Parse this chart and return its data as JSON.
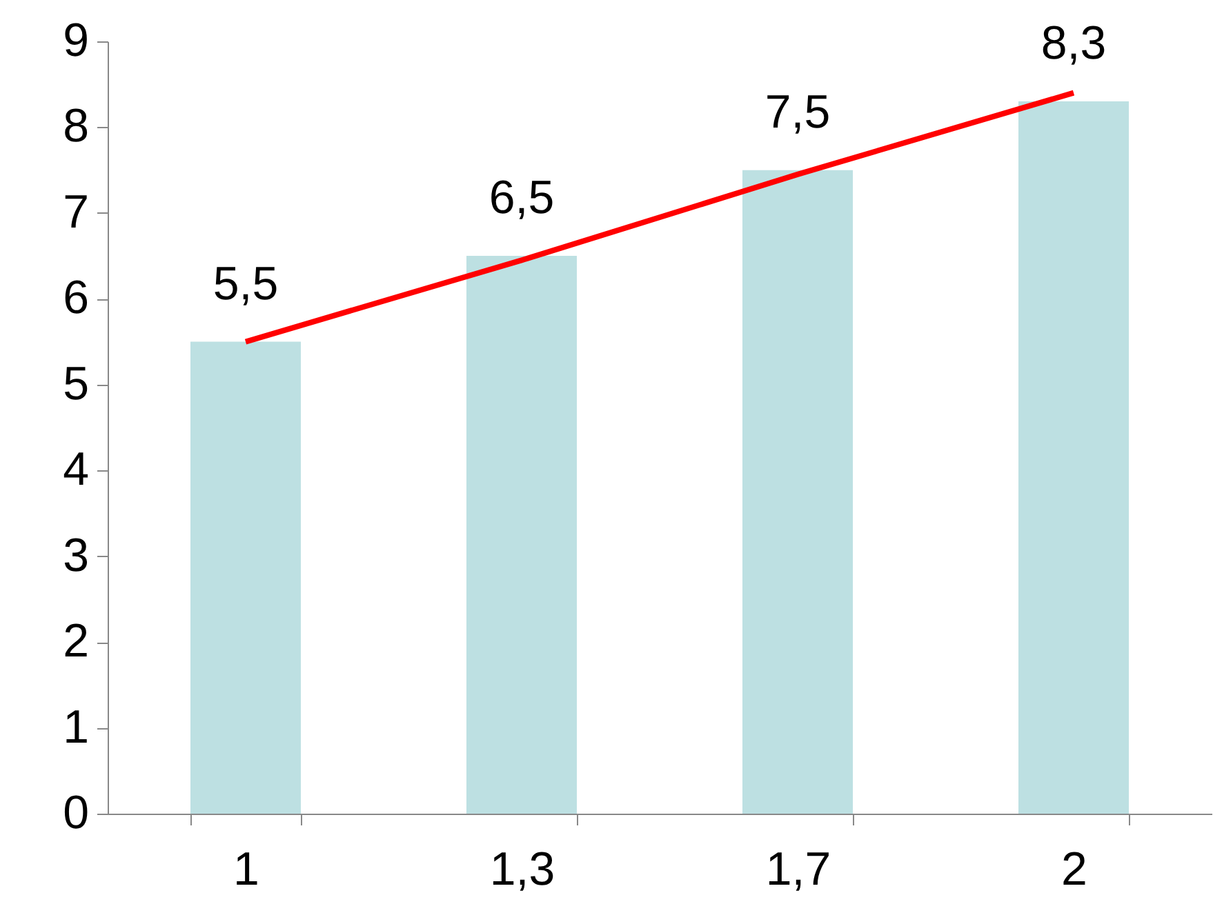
{
  "chart_data": {
    "type": "bar",
    "categories": [
      "1",
      "1,3",
      "1,7",
      "2"
    ],
    "series": [
      {
        "color": "#bde0e2",
        "values": [
          5.5,
          6.5,
          7.5,
          8.3
        ],
        "value_labels": [
          "5,5",
          "6,5",
          "7,5",
          "8,3"
        ]
      },
      {
        "type": "line",
        "color": "#ff0000",
        "values": [
          5.5,
          6.45,
          7.45,
          8.4
        ]
      }
    ],
    "ylim": [
      0,
      9
    ],
    "yticks": [
      0,
      1,
      2,
      3,
      4,
      5,
      6,
      7,
      8,
      9
    ]
  }
}
